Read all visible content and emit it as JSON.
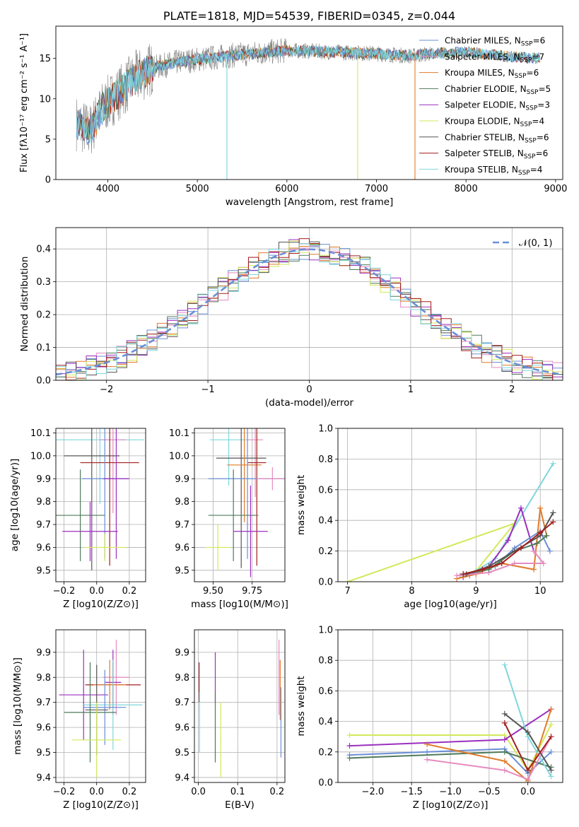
{
  "colors": {
    "Chabrier MILES": "#6a8fd6",
    "Salpeter MILES": "#e58bbf",
    "Kroupa MILES": "#e07b2a",
    "Chabrier ELODIE": "#4f7a5a",
    "Salpeter ELODIE": "#9b2fbf",
    "Kroupa ELODIE": "#d3e85a",
    "Chabrier STELIB": "#555555",
    "Salpeter STELIB": "#a31f1f",
    "Kroupa STELIB": "#7fd6dc"
  },
  "chart_data": [
    {
      "type": "line",
      "title": "PLATE=1818, MJD=54539, FIBERID=0345, z=0.044",
      "xlabel": "wavelength [Angstrom, rest frame]",
      "ylabel": "Flux [fλ10⁻¹⁷ erg cm⁻² s⁻¹ A⁻¹]",
      "xlim": [
        3420,
        9080
      ],
      "ylim": [
        0,
        19
      ],
      "xticks": [
        "4000",
        "5000",
        "6000",
        "7000",
        "8000",
        "9000"
      ],
      "yticks": [
        "0",
        "5",
        "10",
        "15"
      ],
      "legend": [
        {
          "name": "Chabrier MILES",
          "nssp": "6"
        },
        {
          "name": "Salpeter MILES",
          "nssp": "7"
        },
        {
          "name": "Kroupa MILES",
          "nssp": "6"
        },
        {
          "name": "Chabrier ELODIE",
          "nssp": "5"
        },
        {
          "name": "Salpeter ELODIE",
          "nssp": "3"
        },
        {
          "name": "Kroupa ELODIE",
          "nssp": "4"
        },
        {
          "name": "Chabrier STELIB",
          "nssp": "6"
        },
        {
          "name": "Salpeter STELIB",
          "nssp": "6"
        },
        {
          "name": "Kroupa STELIB",
          "nssp": "4"
        }
      ],
      "continuum": [
        [
          3650,
          7.0
        ],
        [
          3800,
          6.0
        ],
        [
          3950,
          9.0
        ],
        [
          4100,
          10.5
        ],
        [
          4300,
          12.5
        ],
        [
          4500,
          13.8
        ],
        [
          4800,
          14.6
        ],
        [
          5100,
          15.0
        ],
        [
          5500,
          15.5
        ],
        [
          6000,
          16.0
        ],
        [
          6500,
          15.8
        ],
        [
          7000,
          15.6
        ],
        [
          7400,
          15.3
        ],
        [
          7600,
          15.6
        ],
        [
          8000,
          15.8
        ],
        [
          8500,
          15.2
        ],
        [
          8800,
          15.0
        ]
      ],
      "lines": [
        [
          5330,
          0
        ],
        [
          6790,
          0
        ],
        [
          7430,
          0
        ]
      ]
    },
    {
      "type": "bar",
      "xlabel": "(data-model)/error",
      "ylabel": "Normed distribution",
      "xlim": [
        -2.5,
        2.5
      ],
      "ylim": [
        0,
        0.465
      ],
      "xticks": [
        "−2",
        "−1",
        "0",
        "1",
        "2"
      ],
      "yticks": [
        "0.0",
        "0.1",
        "0.2",
        "0.3",
        "0.4"
      ],
      "legend": "𝒩(0, 1)",
      "bin_width": 0.1
    },
    {
      "type": "scatter",
      "xlabel": "Z [log10(Z/Z⊙)]",
      "ylabel": "age  [log10(age/yr)]",
      "xlim": [
        -0.25,
        0.3
      ],
      "ylim": [
        9.45,
        10.12
      ],
      "xticks": [
        "−0.2",
        "0.0",
        "0.2"
      ],
      "yticks": [
        "9.5",
        "9.6",
        "9.7",
        "9.8",
        "9.9",
        "10.0",
        "10.1"
      ],
      "points": [
        {
          "s": "Kroupa STELIB",
          "x": 0.02,
          "y": 10.07,
          "ex": 0.27,
          "ey": 0.28
        },
        {
          "s": "Salpeter MILES",
          "x": 0.1,
          "y": 10.07,
          "ex": 0.08,
          "ey": 0.32
        },
        {
          "s": "Chabrier STELIB",
          "x": -0.03,
          "y": 10.0,
          "ex": 0.17,
          "ey": 0.5
        },
        {
          "s": "Salpeter STELIB",
          "x": 0.08,
          "y": 9.97,
          "ex": 0.18,
          "ey": 0.45
        },
        {
          "s": "Chabrier MILES",
          "x": 0.05,
          "y": 9.9,
          "ex": 0.14,
          "ey": 0.35
        },
        {
          "s": "Salpeter ELODIE",
          "x": 0.12,
          "y": 9.9,
          "ex": 0.08,
          "ey": 0.35
        },
        {
          "s": "Chabrier ELODIE",
          "x": -0.1,
          "y": 9.74,
          "ex": 0.15,
          "ey": 0.2
        },
        {
          "s": "Salpeter ELODIE",
          "x": -0.04,
          "y": 9.67,
          "ex": 0.17,
          "ey": 0.13
        },
        {
          "s": "Kroupa ELODIE",
          "x": 0.05,
          "y": 9.6,
          "ex": 0.13,
          "ey": 0.06
        }
      ]
    },
    {
      "type": "scatter",
      "xlabel": "mass [log10(M/M⊙)]",
      "ylabel": "",
      "xlim": [
        9.38,
        9.96
      ],
      "ylim": [
        9.45,
        10.12
      ],
      "xticks": [
        "9.50",
        "9.75"
      ],
      "yticks": [
        "9.5",
        "9.6",
        "9.7",
        "9.8",
        "9.9",
        "10.0",
        "10.1"
      ],
      "points": [
        {
          "s": "Kroupa STELIB",
          "x": 9.6,
          "y": 10.07,
          "ex": 0.12,
          "ey": 0.2
        },
        {
          "s": "Salpeter MILES",
          "x": 9.77,
          "y": 10.07,
          "ex": 0.05,
          "ey": 0.25
        },
        {
          "s": "Chabrier STELIB",
          "x": 9.68,
          "y": 9.99,
          "ex": 0.16,
          "ey": 0.48
        },
        {
          "s": "Kroupa MILES",
          "x": 9.7,
          "y": 9.96,
          "ex": 0.11,
          "ey": 0.25
        },
        {
          "s": "Salpeter STELIB",
          "x": 9.78,
          "y": 9.97,
          "ex": 0.06,
          "ey": 0.45
        },
        {
          "s": "Chabrier MILES",
          "x": 9.72,
          "y": 9.9,
          "ex": 0.25,
          "ey": 0.35
        },
        {
          "s": "Salpeter MILES",
          "x": 9.88,
          "y": 9.9,
          "ex": 0.1,
          "ey": 0.05
        },
        {
          "s": "Chabrier ELODIE",
          "x": 9.63,
          "y": 9.74,
          "ex": 0.16,
          "ey": 0.2
        },
        {
          "s": "Salpeter ELODIE",
          "x": 9.74,
          "y": 9.67,
          "ex": 0.11,
          "ey": 0.2
        },
        {
          "s": "Kroupa ELODIE",
          "x": 9.53,
          "y": 9.6,
          "ex": 0.08,
          "ey": 0.1
        }
      ]
    },
    {
      "type": "line",
      "xlabel": "age  [log10(age/yr)]",
      "ylabel": "mass weight",
      "xlim": [
        6.85,
        10.35
      ],
      "ylim": [
        0,
        1.0
      ],
      "xticks": [
        "7",
        "8",
        "9",
        "10"
      ],
      "yticks": [
        "0.0",
        "0.2",
        "0.4",
        "0.6",
        "0.8",
        "1.0"
      ],
      "series": [
        {
          "s": "Kroupa ELODIE",
          "pts": [
            [
              7.0,
              0.0
            ],
            [
              9.6,
              0.38
            ],
            [
              9.0,
              0.07
            ],
            [
              8.8,
              0.04
            ]
          ]
        },
        {
          "s": "Kroupa STELIB",
          "pts": [
            [
              8.75,
              0.04
            ],
            [
              9.0,
              0.07
            ],
            [
              9.3,
              0.15
            ],
            [
              10.2,
              0.77
            ]
          ]
        },
        {
          "s": "Salpeter ELODIE",
          "pts": [
            [
              8.8,
              0.03
            ],
            [
              9.2,
              0.1
            ],
            [
              9.5,
              0.27
            ],
            [
              9.7,
              0.48
            ],
            [
              9.9,
              0.2
            ]
          ]
        },
        {
          "s": "Chabrier MILES",
          "pts": [
            [
              8.9,
              0.04
            ],
            [
              9.3,
              0.1
            ],
            [
              9.6,
              0.22
            ],
            [
              10.0,
              0.33
            ],
            [
              10.15,
              0.2
            ]
          ]
        },
        {
          "s": "Kroupa MILES",
          "pts": [
            [
              8.7,
              0.02
            ],
            [
              9.0,
              0.05
            ],
            [
              9.4,
              0.12
            ],
            [
              9.9,
              0.08
            ],
            [
              10.0,
              0.48
            ],
            [
              10.1,
              0.3
            ]
          ]
        },
        {
          "s": "Salpeter MILES",
          "pts": [
            [
              8.7,
              0.04
            ],
            [
              9.2,
              0.06
            ],
            [
              9.6,
              0.12
            ],
            [
              10.05,
              0.12
            ],
            [
              9.9,
              0.2
            ]
          ]
        },
        {
          "s": "Chabrier ELODIE",
          "pts": [
            [
              8.8,
              0.05
            ],
            [
              9.2,
              0.08
            ],
            [
              9.6,
              0.2
            ],
            [
              9.95,
              0.25
            ],
            [
              10.1,
              0.3
            ]
          ]
        },
        {
          "s": "Chabrier STELIB",
          "pts": [
            [
              8.85,
              0.05
            ],
            [
              9.2,
              0.1
            ],
            [
              9.6,
              0.2
            ],
            [
              10.0,
              0.3
            ],
            [
              10.2,
              0.45
            ]
          ]
        },
        {
          "s": "Salpeter STELIB",
          "pts": [
            [
              8.8,
              0.05
            ],
            [
              9.1,
              0.08
            ],
            [
              9.4,
              0.12
            ],
            [
              9.7,
              0.22
            ],
            [
              10.0,
              0.32
            ],
            [
              10.2,
              0.39
            ]
          ]
        }
      ]
    },
    {
      "type": "scatter",
      "xlabel": "Z [log10(Z/Z⊙)]",
      "ylabel": "mass [log10(M/M⊙)]",
      "xlim": [
        -0.25,
        0.3
      ],
      "ylim": [
        9.38,
        9.99
      ],
      "xticks": [
        "−0.2",
        "0.0",
        "0.2"
      ],
      "yticks": [
        "9.4",
        "9.5",
        "9.6",
        "9.7",
        "9.8",
        "9.9"
      ],
      "points": [
        {
          "s": "Salpeter MILES",
          "x": 0.12,
          "y": 9.8,
          "ex": 0.08,
          "ey": 0.15
        },
        {
          "s": "Salpeter ELODIE",
          "x": 0.1,
          "y": 9.78,
          "ex": 0.05,
          "ey": 0.13
        },
        {
          "s": "Salpeter STELIB",
          "x": 0.1,
          "y": 9.77,
          "ex": 0.17,
          "ey": 0.09
        },
        {
          "s": "Kroupa MILES",
          "x": 0.08,
          "y": 9.77,
          "ex": 0.1,
          "ey": 0.1
        },
        {
          "s": "Salpeter ELODIE",
          "x": -0.08,
          "y": 9.73,
          "ex": 0.15,
          "ey": 0.18
        },
        {
          "s": "Kroupa STELIB",
          "x": 0.1,
          "y": 9.69,
          "ex": 0.18,
          "ey": 0.18
        },
        {
          "s": "Chabrier MILES",
          "x": 0.05,
          "y": 9.68,
          "ex": 0.13,
          "ey": 0.15
        },
        {
          "s": "Chabrier ELODIE",
          "x": -0.04,
          "y": 9.66,
          "ex": 0.16,
          "ey": 0.2
        },
        {
          "s": "Chabrier STELIB",
          "x": 0.0,
          "y": 9.67,
          "ex": 0.07,
          "ey": 0.18
        },
        {
          "s": "Kroupa ELODIE",
          "x": 0.0,
          "y": 9.55,
          "ex": 0.15,
          "ey": 0.15
        }
      ]
    },
    {
      "type": "scatter",
      "xlabel": "E(B-V)",
      "ylabel": "",
      "xlim": [
        -0.01,
        0.22
      ],
      "ylim": [
        9.38,
        9.99
      ],
      "xticks": [
        "0.0",
        "0.1",
        "0.2"
      ],
      "yticks": [
        "9.4",
        "9.5",
        "9.6",
        "9.7",
        "9.8",
        "9.9"
      ],
      "points": [
        {
          "s": "Salpeter STELIB",
          "x": 0.002,
          "y": 9.78,
          "ey": 0.08
        },
        {
          "s": "Kroupa STELIB",
          "x": 0.003,
          "y": 9.62,
          "ey": 0.12
        },
        {
          "s": "Salpeter ELODIE",
          "x": 0.043,
          "y": 9.8,
          "ey": 0.1
        },
        {
          "s": "Chabrier ELODIE",
          "x": 0.043,
          "y": 9.6,
          "ey": 0.14
        },
        {
          "s": "Kroupa ELODIE",
          "x": 0.057,
          "y": 9.55,
          "ey": 0.15
        },
        {
          "s": "Salpeter MILES",
          "x": 0.205,
          "y": 9.8,
          "ey": 0.15
        },
        {
          "s": "Kroupa MILES",
          "x": 0.208,
          "y": 9.75,
          "ey": 0.12
        },
        {
          "s": "Chabrier MILES",
          "x": 0.21,
          "y": 9.62,
          "ey": 0.14
        }
      ]
    },
    {
      "type": "line",
      "xlabel": "Z [log10(Z/Z⊙)]",
      "ylabel": "mass weight",
      "xlim": [
        -2.45,
        0.45
      ],
      "ylim": [
        0,
        1.0
      ],
      "xticks": [
        "−2.0",
        "−1.5",
        "−1.0",
        "−0.5",
        "0.0"
      ],
      "yticks": [
        "0.0",
        "0.2",
        "0.4",
        "0.6",
        "0.8",
        "1.0"
      ],
      "series": [
        {
          "s": "Kroupa ELODIE",
          "pts": [
            [
              -2.3,
              0.31
            ],
            [
              -0.3,
              0.31
            ],
            [
              0.0,
              0.08
            ],
            [
              0.3,
              0.38
            ]
          ]
        },
        {
          "s": "Salpeter ELODIE",
          "pts": [
            [
              -2.3,
              0.24
            ],
            [
              -0.3,
              0.28
            ],
            [
              0.3,
              0.48
            ]
          ]
        },
        {
          "s": "Chabrier MILES",
          "pts": [
            [
              -2.3,
              0.18
            ],
            [
              -1.3,
              0.2
            ],
            [
              -0.3,
              0.22
            ],
            [
              0.0,
              0.06
            ],
            [
              0.3,
              0.2
            ]
          ]
        },
        {
          "s": "Chabrier ELODIE",
          "pts": [
            [
              -2.3,
              0.16
            ],
            [
              -0.3,
              0.2
            ],
            [
              0.3,
              0.1
            ]
          ]
        },
        {
          "s": "Kroupa MILES",
          "pts": [
            [
              -1.3,
              0.25
            ],
            [
              -0.3,
              0.14
            ],
            [
              0.0,
              0.01
            ],
            [
              0.3,
              0.48
            ]
          ]
        },
        {
          "s": "Salpeter MILES",
          "pts": [
            [
              -1.3,
              0.15
            ],
            [
              -0.3,
              0.08
            ],
            [
              0.0,
              0.02
            ],
            [
              0.3,
              0.3
            ]
          ]
        },
        {
          "s": "Kroupa STELIB",
          "pts": [
            [
              -0.3,
              0.77
            ],
            [
              0.0,
              0.3
            ],
            [
              0.3,
              0.04
            ]
          ]
        },
        {
          "s": "Chabrier STELIB",
          "pts": [
            [
              -0.3,
              0.45
            ],
            [
              0.0,
              0.33
            ],
            [
              0.3,
              0.08
            ]
          ]
        },
        {
          "s": "Salpeter STELIB",
          "pts": [
            [
              -0.3,
              0.39
            ],
            [
              0.0,
              0.08
            ],
            [
              0.3,
              0.3
            ]
          ]
        }
      ]
    }
  ]
}
